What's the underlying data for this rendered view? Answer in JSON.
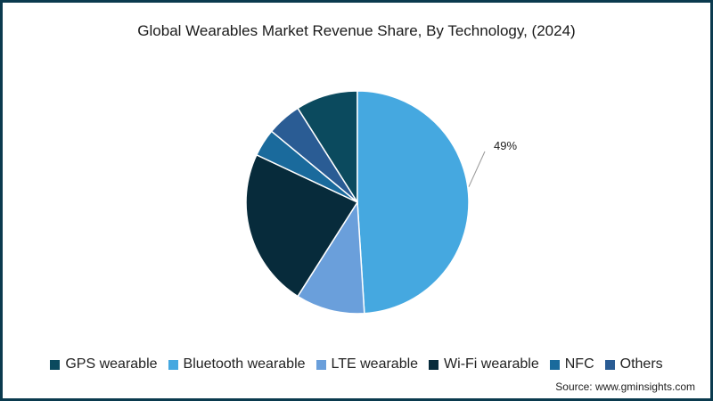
{
  "chart_data": {
    "type": "pie",
    "title": "Global Wearables Market Revenue Share, By Technology, (2024)",
    "series": [
      {
        "name": "GPS wearable",
        "value": 9,
        "color": "#0b4a5e"
      },
      {
        "name": "Bluetooth wearable",
        "value": 49,
        "color": "#45a8e0",
        "label": "49%"
      },
      {
        "name": "LTE wearable",
        "value": 10,
        "color": "#6a9fdb"
      },
      {
        "name": "Wi-Fi wearable",
        "value": 23,
        "color": "#072b3b"
      },
      {
        "name": "NFC",
        "value": 4,
        "color": "#1a6a9c"
      },
      {
        "name": "Others",
        "value": 5,
        "color": "#2a5c94"
      }
    ],
    "legend": "bottom"
  },
  "source": "Source: www.gminsights.com"
}
